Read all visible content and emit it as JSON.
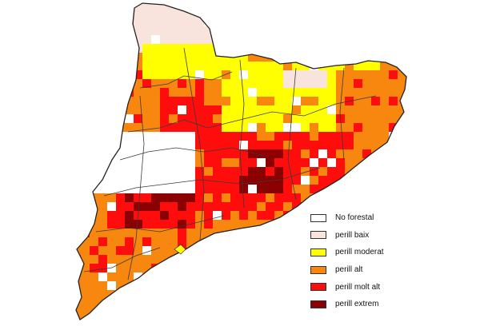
{
  "legend": {
    "items": [
      {
        "label": "No forestal",
        "color": "#ffffff",
        "key": "none"
      },
      {
        "label": "perill baix",
        "color": "#f8e4dc",
        "key": "low"
      },
      {
        "label": "perill moderat",
        "color": "#ffff00",
        "key": "moderate"
      },
      {
        "label": "perill alt",
        "color": "#f7870e",
        "key": "high"
      },
      {
        "label": "perill molt alt",
        "color": "#ff0d0d",
        "key": "very_high"
      },
      {
        "label": "perill extrem",
        "color": "#8b0000",
        "key": "extreme"
      }
    ]
  },
  "colors": {
    "sea": "#ffffff",
    "border": "#2b2b2b"
  }
}
